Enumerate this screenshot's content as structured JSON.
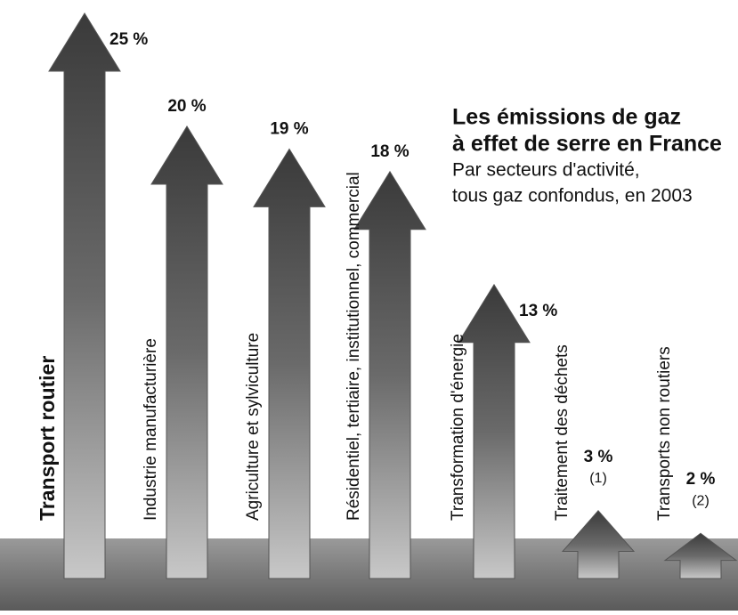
{
  "chart_data": {
    "type": "arrow-bar",
    "title": [
      "Les émissions de gaz",
      "à effet de serre en France"
    ],
    "subtitle": [
      "Par secteurs d'activité,",
      "tous gaz confondus, en 2003"
    ],
    "categories": [
      "Transport routier",
      "Industrie manufacturière",
      "Agriculture et sylviculture",
      "Résidentiel, tertiaire, institutionnel, commercial",
      "Transformation d'énergie",
      "Traitement des déchets",
      "Transports non routiers"
    ],
    "values": [
      25,
      20,
      19,
      18,
      13,
      3,
      2
    ],
    "value_labels": [
      "25 %",
      "20 %",
      "19 %",
      "18 %",
      "13 %",
      "3 %",
      "2 %"
    ],
    "notes": [
      null,
      null,
      null,
      null,
      null,
      "(1)",
      "(2)"
    ],
    "color": "#555555"
  }
}
